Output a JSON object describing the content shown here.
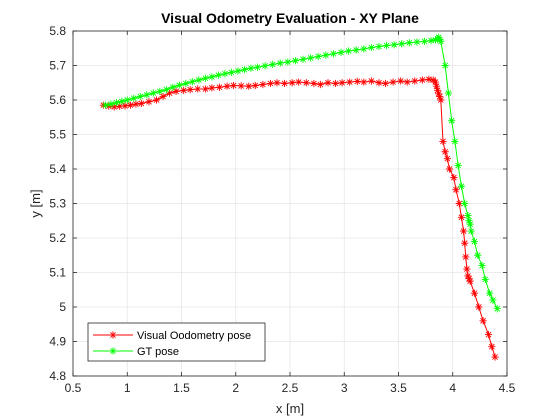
{
  "chart_data": {
    "type": "line",
    "title": "Visual Odometry Evaluation - XY Plane",
    "xlabel": "x [m]",
    "ylabel": "y [m]",
    "xlim": [
      0.5,
      4.5
    ],
    "ylim": [
      4.8,
      5.8
    ],
    "xticks": [
      "0.5",
      "1",
      "1.5",
      "2",
      "2.5",
      "3",
      "3.5",
      "4",
      "4.5"
    ],
    "yticks": [
      "4.8",
      "4.9",
      "5",
      "5.1",
      "5.2",
      "5.3",
      "5.4",
      "5.5",
      "5.6",
      "5.7",
      "5.8"
    ],
    "grid": true,
    "legend_position": "bottom-left",
    "marker": "asterisk",
    "series": [
      {
        "name": "Visual Oodometry pose",
        "color": "#ff0000",
        "points": [
          [
            0.78,
            5.585
          ],
          [
            0.83,
            5.582
          ],
          [
            0.88,
            5.58
          ],
          [
            0.93,
            5.582
          ],
          [
            0.98,
            5.583
          ],
          [
            1.03,
            5.585
          ],
          [
            1.08,
            5.588
          ],
          [
            1.13,
            5.59
          ],
          [
            1.2,
            5.595
          ],
          [
            1.27,
            5.6
          ],
          [
            1.33,
            5.61
          ],
          [
            1.39,
            5.62
          ],
          [
            1.45,
            5.625
          ],
          [
            1.52,
            5.628
          ],
          [
            1.58,
            5.63
          ],
          [
            1.65,
            5.632
          ],
          [
            1.72,
            5.632
          ],
          [
            1.78,
            5.635
          ],
          [
            1.85,
            5.637
          ],
          [
            1.92,
            5.64
          ],
          [
            1.98,
            5.642
          ],
          [
            2.05,
            5.641
          ],
          [
            2.12,
            5.64
          ],
          [
            2.18,
            5.642
          ],
          [
            2.25,
            5.645
          ],
          [
            2.32,
            5.648
          ],
          [
            2.38,
            5.65
          ],
          [
            2.45,
            5.648
          ],
          [
            2.52,
            5.65
          ],
          [
            2.58,
            5.652
          ],
          [
            2.65,
            5.65
          ],
          [
            2.72,
            5.648
          ],
          [
            2.78,
            5.645
          ],
          [
            2.85,
            5.65
          ],
          [
            2.92,
            5.648
          ],
          [
            2.98,
            5.65
          ],
          [
            3.05,
            5.652
          ],
          [
            3.12,
            5.654
          ],
          [
            3.18,
            5.652
          ],
          [
            3.25,
            5.655
          ],
          [
            3.32,
            5.65
          ],
          [
            3.38,
            5.648
          ],
          [
            3.45,
            5.652
          ],
          [
            3.52,
            5.655
          ],
          [
            3.58,
            5.652
          ],
          [
            3.65,
            5.655
          ],
          [
            3.72,
            5.658
          ],
          [
            3.78,
            5.66
          ],
          [
            3.82,
            5.658
          ],
          [
            3.84,
            5.652
          ],
          [
            3.85,
            5.64
          ],
          [
            3.86,
            5.628
          ],
          [
            3.87,
            5.618
          ],
          [
            3.88,
            5.61
          ],
          [
            3.89,
            5.6
          ],
          [
            3.91,
            5.48
          ],
          [
            3.93,
            5.45
          ],
          [
            3.95,
            5.43
          ],
          [
            3.97,
            5.4
          ],
          [
            4.01,
            5.375
          ],
          [
            4.03,
            5.34
          ],
          [
            4.06,
            5.3
          ],
          [
            4.08,
            5.26
          ],
          [
            4.1,
            5.22
          ],
          [
            4.11,
            5.185
          ],
          [
            4.12,
            5.145
          ],
          [
            4.13,
            5.11
          ],
          [
            4.14,
            5.09
          ],
          [
            4.15,
            5.082
          ],
          [
            4.16,
            5.075
          ],
          [
            4.2,
            5.04
          ],
          [
            4.24,
            5.0
          ],
          [
            4.28,
            4.96
          ],
          [
            4.33,
            4.92
          ],
          [
            4.36,
            4.885
          ],
          [
            4.39,
            4.855
          ]
        ]
      },
      {
        "name": "GT pose",
        "color": "#00ff00",
        "points": [
          [
            0.8,
            5.585
          ],
          [
            0.85,
            5.588
          ],
          [
            0.9,
            5.592
          ],
          [
            0.95,
            5.596
          ],
          [
            1.0,
            5.6
          ],
          [
            1.06,
            5.605
          ],
          [
            1.12,
            5.61
          ],
          [
            1.18,
            5.615
          ],
          [
            1.24,
            5.62
          ],
          [
            1.3,
            5.625
          ],
          [
            1.36,
            5.63
          ],
          [
            1.42,
            5.637
          ],
          [
            1.48,
            5.643
          ],
          [
            1.54,
            5.648
          ],
          [
            1.6,
            5.653
          ],
          [
            1.66,
            5.658
          ],
          [
            1.72,
            5.663
          ],
          [
            1.78,
            5.667
          ],
          [
            1.84,
            5.672
          ],
          [
            1.9,
            5.676
          ],
          [
            1.96,
            5.68
          ],
          [
            2.02,
            5.684
          ],
          [
            2.08,
            5.688
          ],
          [
            2.14,
            5.692
          ],
          [
            2.2,
            5.695
          ],
          [
            2.27,
            5.699
          ],
          [
            2.34,
            5.703
          ],
          [
            2.41,
            5.707
          ],
          [
            2.48,
            5.71
          ],
          [
            2.55,
            5.714
          ],
          [
            2.62,
            5.718
          ],
          [
            2.69,
            5.722
          ],
          [
            2.76,
            5.726
          ],
          [
            2.83,
            5.73
          ],
          [
            2.9,
            5.734
          ],
          [
            2.97,
            5.738
          ],
          [
            3.04,
            5.742
          ],
          [
            3.11,
            5.745
          ],
          [
            3.18,
            5.748
          ],
          [
            3.25,
            5.752
          ],
          [
            3.32,
            5.755
          ],
          [
            3.39,
            5.758
          ],
          [
            3.46,
            5.76
          ],
          [
            3.53,
            5.763
          ],
          [
            3.6,
            5.766
          ],
          [
            3.67,
            5.768
          ],
          [
            3.74,
            5.77
          ],
          [
            3.8,
            5.772
          ],
          [
            3.84,
            5.774
          ],
          [
            3.86,
            5.778
          ],
          [
            3.87,
            5.782
          ],
          [
            3.88,
            5.775
          ],
          [
            3.89,
            5.77
          ],
          [
            3.93,
            5.7
          ],
          [
            3.96,
            5.62
          ],
          [
            3.99,
            5.54
          ],
          [
            4.02,
            5.48
          ],
          [
            4.05,
            5.41
          ],
          [
            4.08,
            5.35
          ],
          [
            4.11,
            5.3
          ],
          [
            4.14,
            5.265
          ],
          [
            4.15,
            5.25
          ],
          [
            4.16,
            5.24
          ],
          [
            4.17,
            5.22
          ],
          [
            4.2,
            5.19
          ],
          [
            4.23,
            5.15
          ],
          [
            4.27,
            5.12
          ],
          [
            4.3,
            5.08
          ],
          [
            4.34,
            5.04
          ],
          [
            4.37,
            5.02
          ],
          [
            4.41,
            4.995
          ]
        ]
      }
    ]
  }
}
